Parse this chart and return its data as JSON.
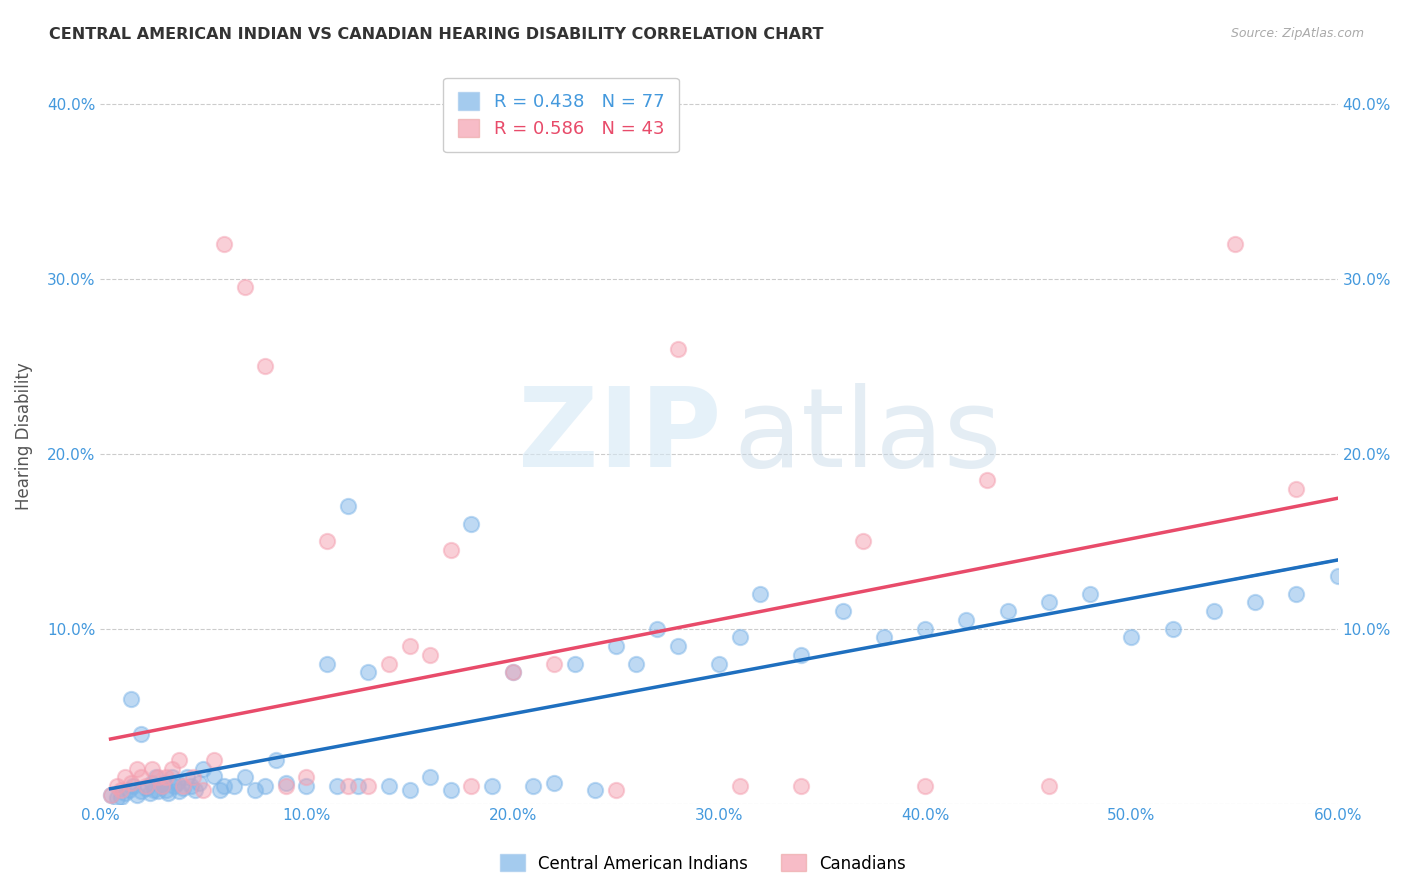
{
  "title": "CENTRAL AMERICAN INDIAN VS CANADIAN HEARING DISABILITY CORRELATION CHART",
  "source": "Source: ZipAtlas.com",
  "ylabel": "Hearing Disability",
  "xlim": [
    0.0,
    0.6
  ],
  "ylim": [
    0.0,
    0.42
  ],
  "xticks": [
    0.0,
    0.1,
    0.2,
    0.3,
    0.4,
    0.5,
    0.6
  ],
  "yticks": [
    0.0,
    0.1,
    0.2,
    0.3,
    0.4
  ],
  "xticklabels": [
    "0.0%",
    "10.0%",
    "20.0%",
    "30.0%",
    "40.0%",
    "50.0%",
    "60.0%"
  ],
  "yticklabels": [
    "",
    "10.0%",
    "20.0%",
    "30.0%",
    "40.0%"
  ],
  "blue_R": 0.438,
  "blue_N": 77,
  "pink_R": 0.586,
  "pink_N": 43,
  "blue_color": "#7EB5E8",
  "pink_color": "#F4A0B0",
  "blue_line_color": "#1E6FBF",
  "pink_line_color": "#E84B6A",
  "blue_scatter_x": [
    0.005,
    0.008,
    0.01,
    0.012,
    0.014,
    0.016,
    0.018,
    0.02,
    0.022,
    0.024,
    0.025,
    0.026,
    0.027,
    0.028,
    0.03,
    0.031,
    0.032,
    0.033,
    0.035,
    0.036,
    0.037,
    0.038,
    0.04,
    0.042,
    0.044,
    0.046,
    0.048,
    0.05,
    0.055,
    0.058,
    0.06,
    0.065,
    0.07,
    0.075,
    0.08,
    0.085,
    0.09,
    0.1,
    0.11,
    0.115,
    0.12,
    0.125,
    0.13,
    0.14,
    0.15,
    0.16,
    0.17,
    0.18,
    0.19,
    0.2,
    0.21,
    0.22,
    0.23,
    0.24,
    0.25,
    0.26,
    0.27,
    0.28,
    0.3,
    0.31,
    0.32,
    0.34,
    0.36,
    0.38,
    0.4,
    0.42,
    0.44,
    0.46,
    0.48,
    0.5,
    0.52,
    0.54,
    0.56,
    0.58,
    0.6,
    0.015,
    0.02
  ],
  "blue_scatter_y": [
    0.005,
    0.003,
    0.004,
    0.006,
    0.008,
    0.01,
    0.005,
    0.007,
    0.009,
    0.006,
    0.012,
    0.008,
    0.015,
    0.007,
    0.01,
    0.012,
    0.008,
    0.006,
    0.015,
    0.01,
    0.012,
    0.007,
    0.009,
    0.015,
    0.01,
    0.008,
    0.012,
    0.02,
    0.016,
    0.008,
    0.01,
    0.01,
    0.015,
    0.008,
    0.01,
    0.025,
    0.012,
    0.01,
    0.08,
    0.01,
    0.17,
    0.01,
    0.075,
    0.01,
    0.008,
    0.015,
    0.008,
    0.16,
    0.01,
    0.075,
    0.01,
    0.012,
    0.08,
    0.008,
    0.09,
    0.08,
    0.1,
    0.09,
    0.08,
    0.095,
    0.12,
    0.085,
    0.11,
    0.095,
    0.1,
    0.105,
    0.11,
    0.115,
    0.12,
    0.095,
    0.1,
    0.11,
    0.115,
    0.12,
    0.13,
    0.06,
    0.04
  ],
  "pink_scatter_x": [
    0.005,
    0.008,
    0.01,
    0.012,
    0.015,
    0.018,
    0.02,
    0.022,
    0.025,
    0.028,
    0.03,
    0.032,
    0.035,
    0.038,
    0.04,
    0.045,
    0.05,
    0.055,
    0.06,
    0.07,
    0.08,
    0.09,
    0.1,
    0.11,
    0.12,
    0.13,
    0.14,
    0.15,
    0.16,
    0.17,
    0.18,
    0.2,
    0.22,
    0.25,
    0.28,
    0.31,
    0.34,
    0.37,
    0.4,
    0.43,
    0.46,
    0.55,
    0.58
  ],
  "pink_scatter_y": [
    0.005,
    0.01,
    0.008,
    0.015,
    0.012,
    0.02,
    0.015,
    0.01,
    0.02,
    0.015,
    0.01,
    0.015,
    0.02,
    0.025,
    0.01,
    0.015,
    0.008,
    0.025,
    0.32,
    0.295,
    0.25,
    0.01,
    0.015,
    0.15,
    0.01,
    0.01,
    0.08,
    0.09,
    0.085,
    0.145,
    0.01,
    0.075,
    0.08,
    0.008,
    0.26,
    0.01,
    0.01,
    0.15,
    0.01,
    0.185,
    0.01,
    0.32,
    0.18
  ]
}
